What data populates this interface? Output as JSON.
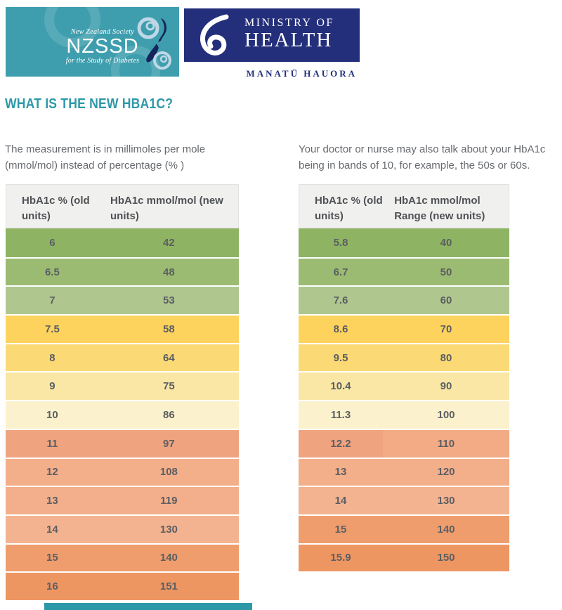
{
  "brand": {
    "nzssd": {
      "society_line": "New Zealand Society",
      "acronym": "NZSSD",
      "tagline": "for the Study of Diabetes",
      "bg_color": "#3E9EAE"
    },
    "ministry": {
      "name_line1": "MINISTRY OF",
      "name_line2": "HEALTH",
      "maori_name": "MANATŪ HAUORA",
      "bg_color": "#242F7C"
    }
  },
  "title": {
    "text": "WHAT IS THE NEW HBA1C?",
    "color": "#2E98A8"
  },
  "intro": {
    "left": "The measurement is in millimoles per mole (mmol/mol) instead of percentage (% )",
    "right": "Your doctor or nurse may also talk about your HbA1c being in bands of 10, for example, the 50s or 60s."
  },
  "footer_bar": {
    "color": "#2D98A8"
  },
  "chart_data": [
    {
      "type": "table",
      "headers": {
        "col1": "HbA1c % (old units)",
        "col2": "HbA1c mmol/mol (new units)"
      },
      "rows": [
        {
          "old": "6",
          "new": "42",
          "color": "#8EB463"
        },
        {
          "old": "6.5",
          "new": "48",
          "color": "#9BBB72"
        },
        {
          "old": "7",
          "new": "53",
          "color": "#AFC78E"
        },
        {
          "old": "7.5",
          "new": "58",
          "color": "#FDD35E"
        },
        {
          "old": "8",
          "new": "64",
          "color": "#FBDA75"
        },
        {
          "old": "9",
          "new": "75",
          "color": "#FAE7A6"
        },
        {
          "old": "10",
          "new": "86",
          "color": "#FBF1CC"
        },
        {
          "old": "11",
          "new": "97",
          "color": "#EFA37F"
        },
        {
          "old": "12",
          "new": "108",
          "color": "#F3AE8A"
        },
        {
          "old": "13",
          "new": "119",
          "color": "#F3AF8B"
        },
        {
          "old": "14",
          "new": "130",
          "color": "#F4B390"
        },
        {
          "old": "15",
          "new": "140",
          "color": "#F09D6D"
        },
        {
          "old": "16",
          "new": "151",
          "color": "#EE9662"
        }
      ]
    },
    {
      "type": "table",
      "headers": {
        "col1": "HbA1c % (old units)",
        "col2": "HbA1c mmol/mol Range (new units)"
      },
      "rows": [
        {
          "old": "5.8",
          "new": "40",
          "color": "#8EB463"
        },
        {
          "old": "6.7",
          "new": "50",
          "color": "#9BBB72"
        },
        {
          "old": "7.6",
          "new": "60",
          "color": "#AFC78E"
        },
        {
          "old": "8.6",
          "new": "70",
          "color": "#FDD35E"
        },
        {
          "old": "9.5",
          "new": "80",
          "color": "#FBDA75"
        },
        {
          "old": "10.4",
          "new": "90",
          "color": "#FAE7A6"
        },
        {
          "old": "11.3",
          "new": "100",
          "color": "#FBF1CC"
        },
        {
          "old": "12.2",
          "new": "110",
          "color": "#EFA37F",
          "color2": "#F2AB85"
        },
        {
          "old": "13",
          "new": "120",
          "color": "#F3AE8A"
        },
        {
          "old": "14",
          "new": "130",
          "color": "#F4B390"
        },
        {
          "old": "15",
          "new": "140",
          "color": "#F09D6D"
        },
        {
          "old": "15.9",
          "new": "150",
          "color": "#EE9662"
        }
      ]
    }
  ]
}
